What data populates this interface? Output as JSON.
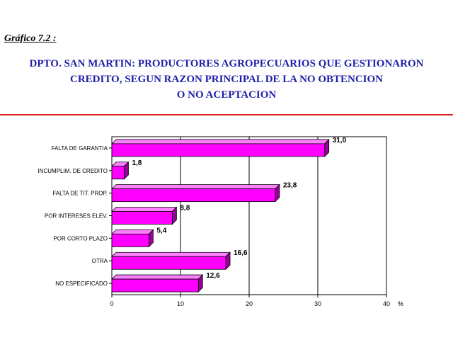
{
  "header": {
    "figure_label": "Gráfico 7.2 :",
    "title_lines": [
      "DPTO. SAN MARTIN: PRODUCTORES AGROPECUARIOS QUE GESTIONARON",
      "CREDITO, SEGUN RAZON PRINCIPAL DE LA NO OBTENCION",
      "O NO ACEPTACION"
    ]
  },
  "colors": {
    "title": "#1f1fa8",
    "divider": "#d62020",
    "bar_front": "#ff00ff",
    "bar_top": "#ff80ff",
    "bar_side": "#990099"
  },
  "chart_data": {
    "type": "bar",
    "orientation": "horizontal",
    "categories": [
      "FALTA DE GARANTIA",
      "INCUMPLIM. DE CREDITO",
      "FALTA DE TIT. PROP.",
      "POR INTERESES ELEV.",
      "POR CORTO PLAZO",
      "OTRA",
      "NO ESPECIFICADO"
    ],
    "values": [
      31.0,
      1.8,
      23.8,
      8.8,
      5.4,
      16.6,
      12.6
    ],
    "value_labels": [
      "31,0",
      "1,8",
      "23,8",
      "8,8",
      "5,4",
      "16,6",
      "12,6"
    ],
    "xlim": [
      0,
      40
    ],
    "x_ticks": [
      "0",
      "10",
      "20",
      "30",
      "40"
    ],
    "x_unit": "%",
    "title": "",
    "xlabel": "",
    "ylabel": "",
    "grid": "vertical",
    "style": "3d"
  }
}
